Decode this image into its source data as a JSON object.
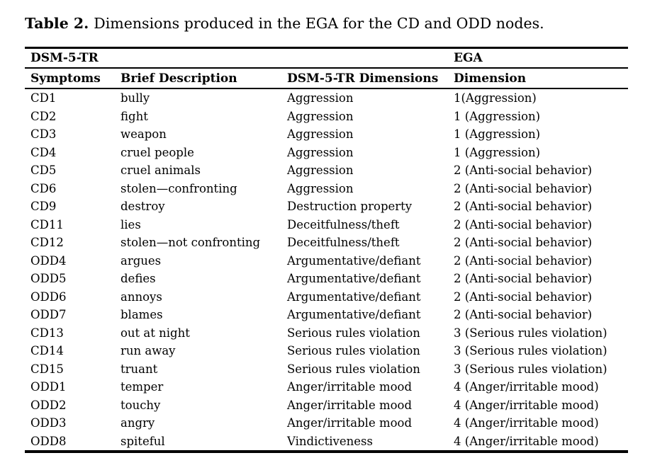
{
  "caption": {
    "label": "Table 2.",
    "text": "Dimensions produced in the EGA for the CD and ODD nodes."
  },
  "table": {
    "group_headers": {
      "dsm": "DSM-5-TR",
      "ega": "EGA"
    },
    "columns": [
      "Symptoms",
      "Brief Description",
      "DSM-5-TR Dimensions",
      "Dimension"
    ],
    "rows": [
      [
        "CD1",
        "bully",
        "Aggression",
        "1(Aggression)"
      ],
      [
        "CD2",
        "fight",
        "Aggression",
        "1 (Aggression)"
      ],
      [
        "CD3",
        "weapon",
        "Aggression",
        "1 (Aggression)"
      ],
      [
        "CD4",
        "cruel people",
        "Aggression",
        "1 (Aggression)"
      ],
      [
        "CD5",
        "cruel animals",
        "Aggression",
        "2 (Anti-social behavior)"
      ],
      [
        "CD6",
        "stolen—confronting",
        "Aggression",
        "2 (Anti-social behavior)"
      ],
      [
        "CD9",
        "destroy",
        "Destruction property",
        "2 (Anti-social behavior)"
      ],
      [
        "CD11",
        "lies",
        "Deceitfulness/theft",
        "2 (Anti-social behavior)"
      ],
      [
        "CD12",
        "stolen—not confronting",
        "Deceitfulness/theft",
        "2 (Anti-social behavior)"
      ],
      [
        "ODD4",
        "argues",
        "Argumentative/defiant",
        "2 (Anti-social behavior)"
      ],
      [
        "ODD5",
        "defies",
        "Argumentative/defiant",
        "2 (Anti-social behavior)"
      ],
      [
        "ODD6",
        "annoys",
        "Argumentative/defiant",
        "2 (Anti-social behavior)"
      ],
      [
        "ODD7",
        "blames",
        "Argumentative/defiant",
        "2 (Anti-social behavior)"
      ],
      [
        "CD13",
        "out at night",
        "Serious rules violation",
        "3 (Serious rules violation)"
      ],
      [
        "CD14",
        "run away",
        "Serious rules violation",
        "3 (Serious rules violation)"
      ],
      [
        "CD15",
        "truant",
        "Serious rules violation",
        "3 (Serious rules violation)"
      ],
      [
        "ODD1",
        "temper",
        "Anger/irritable mood",
        "4 (Anger/irritable mood)"
      ],
      [
        "ODD2",
        "touchy",
        "Anger/irritable mood",
        "4 (Anger/irritable mood)"
      ],
      [
        "ODD3",
        "angry",
        "Anger/irritable mood",
        "4 (Anger/irritable mood)"
      ],
      [
        "ODD8",
        "spiteful",
        "Vindictiveness",
        "4 (Anger/irritable mood)"
      ]
    ],
    "cell_names": [
      "symptom",
      "brief-description",
      "dsm-dimension",
      "ega-dimension"
    ],
    "colors": {
      "text": "#000000",
      "rule": "#000000",
      "background": "#ffffff"
    }
  }
}
